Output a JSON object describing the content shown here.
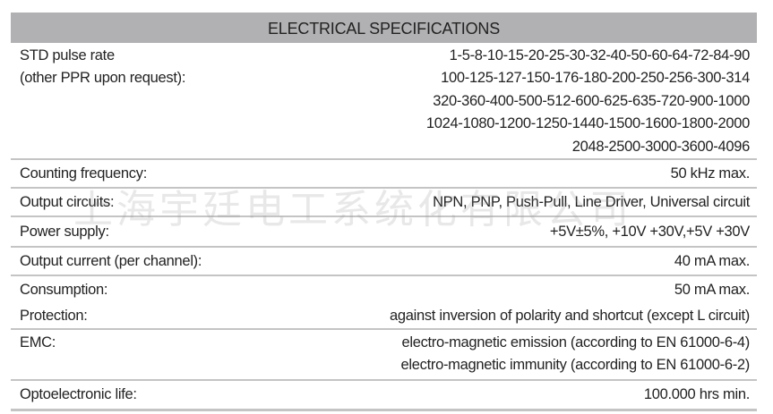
{
  "header": {
    "title": "ELECTRICAL SPECIFICATIONS"
  },
  "rows": {
    "pulse": {
      "label": [
        "STD pulse rate",
        "(other PPR upon request):"
      ],
      "values": [
        "1-5-8-10-15-20-25-30-32-40-50-60-64-72-84-90",
        "100-125-127-150-176-180-200-250-256-300-314",
        "320-360-400-500-512-600-625-635-720-900-1000",
        "1024-1080-1200-1250-1440-1500-1600-1800-2000",
        "2048-2500-3000-3600-4096"
      ]
    },
    "counting": {
      "label": "Counting frequency:",
      "value": "50 kHz max."
    },
    "output_circuits": {
      "label": "Output circuits:",
      "value": "NPN, PNP, Push-Pull, Line Driver, Universal circuit"
    },
    "power": {
      "label": "Power supply:",
      "value": "+5V±5%, +10V +30V,+5V +30V"
    },
    "output_current": {
      "label": "Output current (per channel):",
      "value": "40 mA max."
    },
    "consumption": {
      "label": "Consumption:",
      "value": "50 mA max."
    },
    "protection": {
      "label": "Protection:",
      "value": "against inversion of polarity and shortcut (except L circuit)"
    },
    "emc": {
      "label": "EMC:",
      "values": [
        "electro-magnetic emission (according to EN 61000-6-4)",
        "electro-magnetic immunity (according to EN 61000-6-2)"
      ]
    },
    "life": {
      "label": "Optoelectronic life:",
      "value": "100.000 hrs min."
    }
  },
  "watermark": "上海宇廷电工系统化有限公司"
}
